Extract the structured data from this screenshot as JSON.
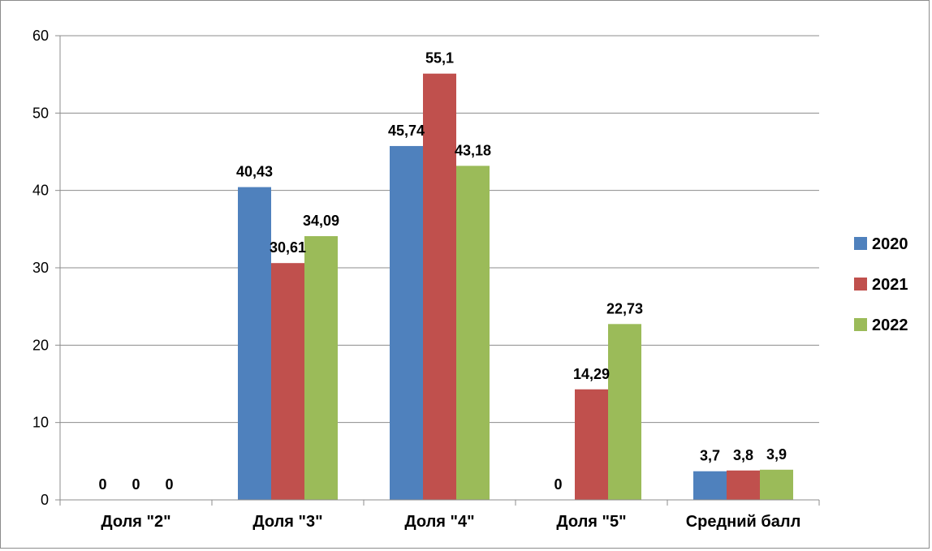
{
  "chart_data": {
    "type": "bar",
    "categories": [
      "Доля \"2\"",
      "Доля \"3\"",
      "Доля \"4\"",
      "Доля \"5\"",
      "Средний балл"
    ],
    "series": [
      {
        "name": "2020",
        "color": "#4f81bd",
        "values": [
          0,
          40.43,
          45.74,
          0,
          3.7
        ],
        "labels": [
          "0",
          "40,43",
          "45,74",
          "0",
          "3,7"
        ]
      },
      {
        "name": "2021",
        "color": "#c0504d",
        "values": [
          0,
          30.61,
          55.1,
          14.29,
          3.8
        ],
        "labels": [
          "0",
          "30,61",
          "55,1",
          "14,29",
          "3,8"
        ]
      },
      {
        "name": "2022",
        "color": "#9bbb59",
        "values": [
          0,
          34.09,
          43.18,
          22.73,
          3.9
        ],
        "labels": [
          "0",
          "34,09",
          "43,18",
          "22,73",
          "3,9"
        ]
      }
    ],
    "ylim": [
      0,
      60
    ],
    "yticks": [
      "0",
      "10",
      "20",
      "30",
      "40",
      "50",
      "60"
    ],
    "grid": true,
    "legend": "right",
    "title": "",
    "xlabel": "",
    "ylabel": ""
  }
}
